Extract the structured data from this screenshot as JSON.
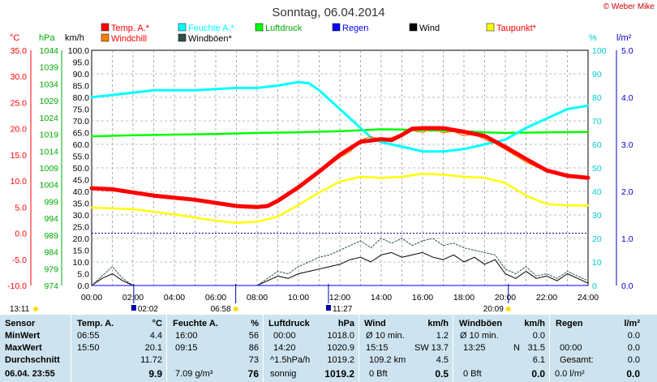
{
  "title": "Sonntag, 06.04.2014",
  "copyright": "© Weber Mike",
  "legend": [
    {
      "label": "Temp. A.*",
      "color": "#ff0000",
      "text_color": "#ff0000"
    },
    {
      "label": "Feuchte A.*",
      "color": "#00ffff",
      "text_color": "#00ffff"
    },
    {
      "label": "Luftdruck",
      "color": "#00ff00",
      "text_color": "#00aa00"
    },
    {
      "label": "Regen",
      "color": "#0000ff",
      "text_color": "#0000ff"
    },
    {
      "label": "Wind",
      "color": "#000000",
      "text_color": "#000000"
    },
    {
      "label": "Taupunkt*",
      "color": "#ffff00",
      "text_color": "#ff0000"
    },
    {
      "label": "Windchill",
      "color": "#ff8000",
      "text_color": "#ff0000"
    },
    {
      "label": "Windböen*",
      "color": "#2f4f4f",
      "text_color": "#000000"
    }
  ],
  "axis_units": {
    "temp": "°C",
    "pressure": "hPa",
    "wind": "km/h",
    "humidity": "%",
    "rain": "l/m²"
  },
  "axes": {
    "temp_ticks": [
      "35.0",
      "30.0",
      "25.0",
      "20.0",
      "15.0",
      "10.0",
      "5.0",
      "0.0",
      "-5.0",
      "-10.0"
    ],
    "pressure_ticks": [
      "1044",
      "1039",
      "1034",
      "1029",
      "1024",
      "1019",
      "1014",
      "1009",
      "1004",
      "999",
      "994",
      "989",
      "984",
      "979",
      "974"
    ],
    "wind_ticks": [
      "100.0",
      "95.0",
      "90.0",
      "85.0",
      "80.0",
      "75.0",
      "70.0",
      "65.0",
      "60.0",
      "55.0",
      "50.0",
      "45.0",
      "40.0",
      "35.0",
      "30.0",
      "25.0",
      "20.0",
      "15.0",
      "10.0",
      "5.0",
      "0.0"
    ],
    "humidity_ticks": [
      "100",
      "90",
      "80",
      "70",
      "60",
      "50",
      "40",
      "30",
      "20",
      "10",
      "0"
    ],
    "rain_ticks": [
      "5.0",
      "4.0",
      "3.0",
      "2.0",
      "1.0",
      "0.0"
    ],
    "time_ticks": [
      "00:00",
      "02:00",
      "04:00",
      "06:00",
      "08:00",
      "10:00",
      "12:00",
      "14:00",
      "16:00",
      "18:00",
      "20:00",
      "22:00",
      "24:00"
    ]
  },
  "time_markers": [
    {
      "label": "13:11",
      "kind": "sun"
    },
    {
      "label": "02:02",
      "kind": "moon"
    },
    {
      "label": "06:58",
      "kind": "sun"
    },
    {
      "label": "11:27",
      "kind": "moon"
    },
    {
      "label": "20:09",
      "kind": "sun"
    }
  ],
  "chart_data": {
    "type": "line",
    "title": "Sonntag, 06.04.2014",
    "x_unit": "hours",
    "xlim": [
      0,
      24
    ],
    "temp_ylim": [
      -10,
      35
    ],
    "pressure_ylim": [
      974,
      1044
    ],
    "wind_ylim": [
      0,
      100
    ],
    "humidity_ylim": [
      0,
      100
    ],
    "rain_ylim": [
      0,
      5
    ],
    "series": [
      {
        "name": "Temp. A.*",
        "axis": "temp",
        "color": "#ff0000",
        "width": 5,
        "points": [
          [
            0,
            8.6
          ],
          [
            1,
            8.4
          ],
          [
            2,
            7.8
          ],
          [
            3,
            7.2
          ],
          [
            4,
            6.8
          ],
          [
            5,
            6.4
          ],
          [
            6,
            5.8
          ],
          [
            7,
            5.2
          ],
          [
            7.5,
            5.1
          ],
          [
            8,
            5.0
          ],
          [
            8.5,
            5.2
          ],
          [
            9,
            6.2
          ],
          [
            10,
            8.8
          ],
          [
            11,
            11.8
          ],
          [
            12,
            15.0
          ],
          [
            13,
            17.5
          ],
          [
            14,
            18.0
          ],
          [
            14.5,
            17.8
          ],
          [
            15,
            18.8
          ],
          [
            15.5,
            20.0
          ],
          [
            16,
            20.1
          ],
          [
            17,
            20.1
          ],
          [
            18,
            19.4
          ],
          [
            19,
            18.6
          ],
          [
            20,
            16.5
          ],
          [
            21,
            14.2
          ],
          [
            22,
            12.0
          ],
          [
            23,
            11.0
          ],
          [
            24,
            10.6
          ]
        ]
      },
      {
        "name": "Windchill",
        "axis": "temp",
        "color": "#ff8000",
        "width": 1.2,
        "points": [
          [
            0,
            8.6
          ],
          [
            2,
            7.8
          ],
          [
            4,
            6.8
          ],
          [
            6,
            5.8
          ],
          [
            8,
            5.0
          ],
          [
            9,
            6.0
          ],
          [
            10,
            8.4
          ],
          [
            11,
            11.5
          ],
          [
            12,
            14.5
          ],
          [
            12.5,
            15.6
          ],
          [
            13,
            17.8
          ],
          [
            13.5,
            18.5
          ],
          [
            14,
            17.9
          ],
          [
            14.5,
            18.3
          ],
          [
            15,
            19.0
          ],
          [
            15.5,
            19.6
          ],
          [
            16,
            19.3
          ],
          [
            16.5,
            20.0
          ],
          [
            17,
            19.2
          ],
          [
            17.5,
            19.5
          ],
          [
            18,
            18.6
          ],
          [
            18.5,
            19.1
          ],
          [
            19,
            17.9
          ],
          [
            19.5,
            17.2
          ],
          [
            20,
            16.0
          ],
          [
            21,
            13.6
          ],
          [
            22,
            11.8
          ],
          [
            23,
            10.8
          ],
          [
            24,
            10.4
          ]
        ]
      },
      {
        "name": "Feuchte A.*",
        "axis": "humidity",
        "color": "#00ffff",
        "width": 3,
        "points": [
          [
            0,
            80
          ],
          [
            1,
            81
          ],
          [
            2,
            82
          ],
          [
            3,
            83
          ],
          [
            4,
            83
          ],
          [
            5,
            83
          ],
          [
            6,
            83.5
          ],
          [
            7,
            84
          ],
          [
            8,
            84
          ],
          [
            9,
            85
          ],
          [
            10,
            86.5
          ],
          [
            10.5,
            86
          ],
          [
            11,
            83
          ],
          [
            12,
            75
          ],
          [
            13,
            67
          ],
          [
            13.5,
            63
          ],
          [
            14,
            61
          ],
          [
            15,
            59
          ],
          [
            16,
            57
          ],
          [
            17,
            57
          ],
          [
            18,
            58
          ],
          [
            19,
            60
          ],
          [
            20,
            62
          ],
          [
            21,
            67
          ],
          [
            22,
            71
          ],
          [
            23,
            75
          ],
          [
            24,
            76.5
          ]
        ]
      },
      {
        "name": "Luftdruck",
        "axis": "pressure",
        "color": "#00ff00",
        "width": 2.5,
        "points": [
          [
            0,
            1018.4
          ],
          [
            2,
            1018.7
          ],
          [
            4,
            1018.9
          ],
          [
            6,
            1019.1
          ],
          [
            8,
            1019.4
          ],
          [
            10,
            1019.6
          ],
          [
            12,
            1019.9
          ],
          [
            13,
            1020.2
          ],
          [
            14,
            1020.5
          ],
          [
            15,
            1020.4
          ],
          [
            16,
            1020.2
          ],
          [
            18,
            1019.9
          ],
          [
            19,
            1019.6
          ],
          [
            20,
            1019.4
          ],
          [
            22,
            1019.6
          ],
          [
            24,
            1019.7
          ]
        ]
      },
      {
        "name": "Taupunkt*",
        "axis": "temp",
        "color": "#ffff00",
        "width": 2.5,
        "points": [
          [
            0,
            4.9
          ],
          [
            2,
            4.6
          ],
          [
            4,
            3.6
          ],
          [
            6,
            2.4
          ],
          [
            7,
            2.0
          ],
          [
            8,
            2.2
          ],
          [
            9,
            3.2
          ],
          [
            10,
            5.4
          ],
          [
            11,
            7.8
          ],
          [
            12,
            9.9
          ],
          [
            13,
            10.8
          ],
          [
            14,
            10.6
          ],
          [
            15,
            10.8
          ],
          [
            16,
            11.4
          ],
          [
            17,
            11.2
          ],
          [
            18,
            10.8
          ],
          [
            19,
            10.6
          ],
          [
            20,
            9.6
          ],
          [
            21,
            7.2
          ],
          [
            22,
            5.6
          ],
          [
            23,
            5.3
          ],
          [
            24,
            5.3
          ]
        ]
      },
      {
        "name": "Wind",
        "axis": "wind",
        "color": "#000000",
        "width": 1,
        "points": [
          [
            0,
            0
          ],
          [
            0.5,
            3
          ],
          [
            1,
            5
          ],
          [
            1.5,
            2
          ],
          [
            2,
            0
          ],
          [
            3,
            0
          ],
          [
            4,
            0
          ],
          [
            5,
            0
          ],
          [
            6,
            0
          ],
          [
            7,
            0
          ],
          [
            8,
            0
          ],
          [
            8.5,
            2
          ],
          [
            9,
            4
          ],
          [
            9.5,
            3
          ],
          [
            10,
            5
          ],
          [
            10.5,
            6
          ],
          [
            11,
            7
          ],
          [
            11.5,
            8
          ],
          [
            12,
            9
          ],
          [
            12.5,
            11
          ],
          [
            13,
            12
          ],
          [
            13.5,
            10
          ],
          [
            14,
            13
          ],
          [
            14.5,
            14
          ],
          [
            15,
            12
          ],
          [
            15.5,
            13
          ],
          [
            16,
            14
          ],
          [
            16.5,
            12
          ],
          [
            17,
            11
          ],
          [
            17.5,
            13
          ],
          [
            18,
            10
          ],
          [
            18.5,
            12
          ],
          [
            19,
            9
          ],
          [
            19.5,
            11
          ],
          [
            20,
            5
          ],
          [
            20.5,
            3
          ],
          [
            21,
            6
          ],
          [
            21.5,
            3
          ],
          [
            22,
            4
          ],
          [
            22.5,
            2
          ],
          [
            23,
            5
          ],
          [
            23.5,
            3
          ],
          [
            24,
            1
          ]
        ]
      },
      {
        "name": "Windböen*",
        "axis": "wind",
        "color": "#2f4f4f",
        "width": 1,
        "dashed": true,
        "points": [
          [
            0,
            0
          ],
          [
            0.5,
            4
          ],
          [
            1,
            8
          ],
          [
            1.5,
            3
          ],
          [
            2,
            0
          ],
          [
            3,
            0
          ],
          [
            4,
            0
          ],
          [
            5,
            0
          ],
          [
            6,
            0
          ],
          [
            7,
            0
          ],
          [
            8,
            0
          ],
          [
            8.5,
            3
          ],
          [
            9,
            6
          ],
          [
            9.5,
            5
          ],
          [
            10,
            8
          ],
          [
            10.5,
            10
          ],
          [
            11,
            12
          ],
          [
            11.5,
            13
          ],
          [
            12,
            15
          ],
          [
            12.5,
            17
          ],
          [
            13,
            19
          ],
          [
            13.5,
            16
          ],
          [
            14,
            20
          ],
          [
            14.5,
            18
          ],
          [
            15,
            20
          ],
          [
            15.5,
            17
          ],
          [
            16,
            19
          ],
          [
            16.5,
            20
          ],
          [
            17,
            17
          ],
          [
            17.5,
            18
          ],
          [
            18,
            16
          ],
          [
            18.5,
            15
          ],
          [
            19,
            14
          ],
          [
            19.5,
            13
          ],
          [
            20,
            7
          ],
          [
            20.5,
            5
          ],
          [
            21,
            8
          ],
          [
            21.5,
            4
          ],
          [
            22,
            5
          ],
          [
            22.5,
            3
          ],
          [
            23,
            6
          ],
          [
            23.5,
            4
          ],
          [
            24,
            2
          ]
        ]
      },
      {
        "name": "Regen",
        "axis": "rain",
        "color": "#0000ff",
        "width": 1,
        "points": [
          [
            0,
            0
          ],
          [
            24,
            0
          ]
        ]
      }
    ]
  },
  "stats": {
    "sensor": {
      "header": "Sensor",
      "rows": [
        "MinWert",
        "MaxWert",
        "Durchschnitt",
        "06.04. 23:55"
      ]
    },
    "temp": {
      "header": "Temp. A.",
      "unit": "°C",
      "rows": [
        [
          "06:55",
          "4.4"
        ],
        [
          "15:50",
          "20.1"
        ],
        [
          "",
          "11.72"
        ],
        [
          "",
          "9.9"
        ]
      ]
    },
    "humidity": {
      "header": "Feuchte A.",
      "unit": "%",
      "rows": [
        [
          "16:00",
          "56"
        ],
        [
          "09:15",
          "86"
        ],
        [
          "",
          "73"
        ],
        [
          "7.09 g/m³",
          "76"
        ]
      ]
    },
    "pressure": {
      "header": "Luftdruck",
      "unit": "hPa",
      "rows": [
        [
          "00:00",
          "1018.0"
        ],
        [
          "14:20",
          "1020.9"
        ],
        [
          "^1.5hPa/h",
          "1019.2"
        ],
        [
          "sonnig",
          "1019.2"
        ]
      ]
    },
    "wind": {
      "header": "Wind",
      "unit": "km/h",
      "rows": [
        [
          "Ø 10 min.",
          "",
          "1.2"
        ],
        [
          "15:15",
          "SW",
          "13.7"
        ],
        [
          "109.2 km",
          "",
          "4.5"
        ],
        [
          "0 Bft",
          "",
          "0.5"
        ]
      ]
    },
    "gusts": {
      "header": "Windböen",
      "unit": "km/h",
      "rows": [
        [
          "Ø 10 min.",
          "",
          "0.0"
        ],
        [
          "13:25",
          "N",
          "31.5"
        ],
        [
          "",
          "",
          "6.1"
        ],
        [
          "0 Bft",
          "",
          "0.0"
        ]
      ]
    },
    "rain": {
      "header": "Regen",
      "unit": "l/m²",
      "rows": [
        [
          "",
          "0.0"
        ],
        [
          "00:00",
          "0.0"
        ],
        [
          "Gesamt:",
          "0.0"
        ],
        [
          "0.0 l/m²",
          "0.0"
        ]
      ]
    }
  }
}
